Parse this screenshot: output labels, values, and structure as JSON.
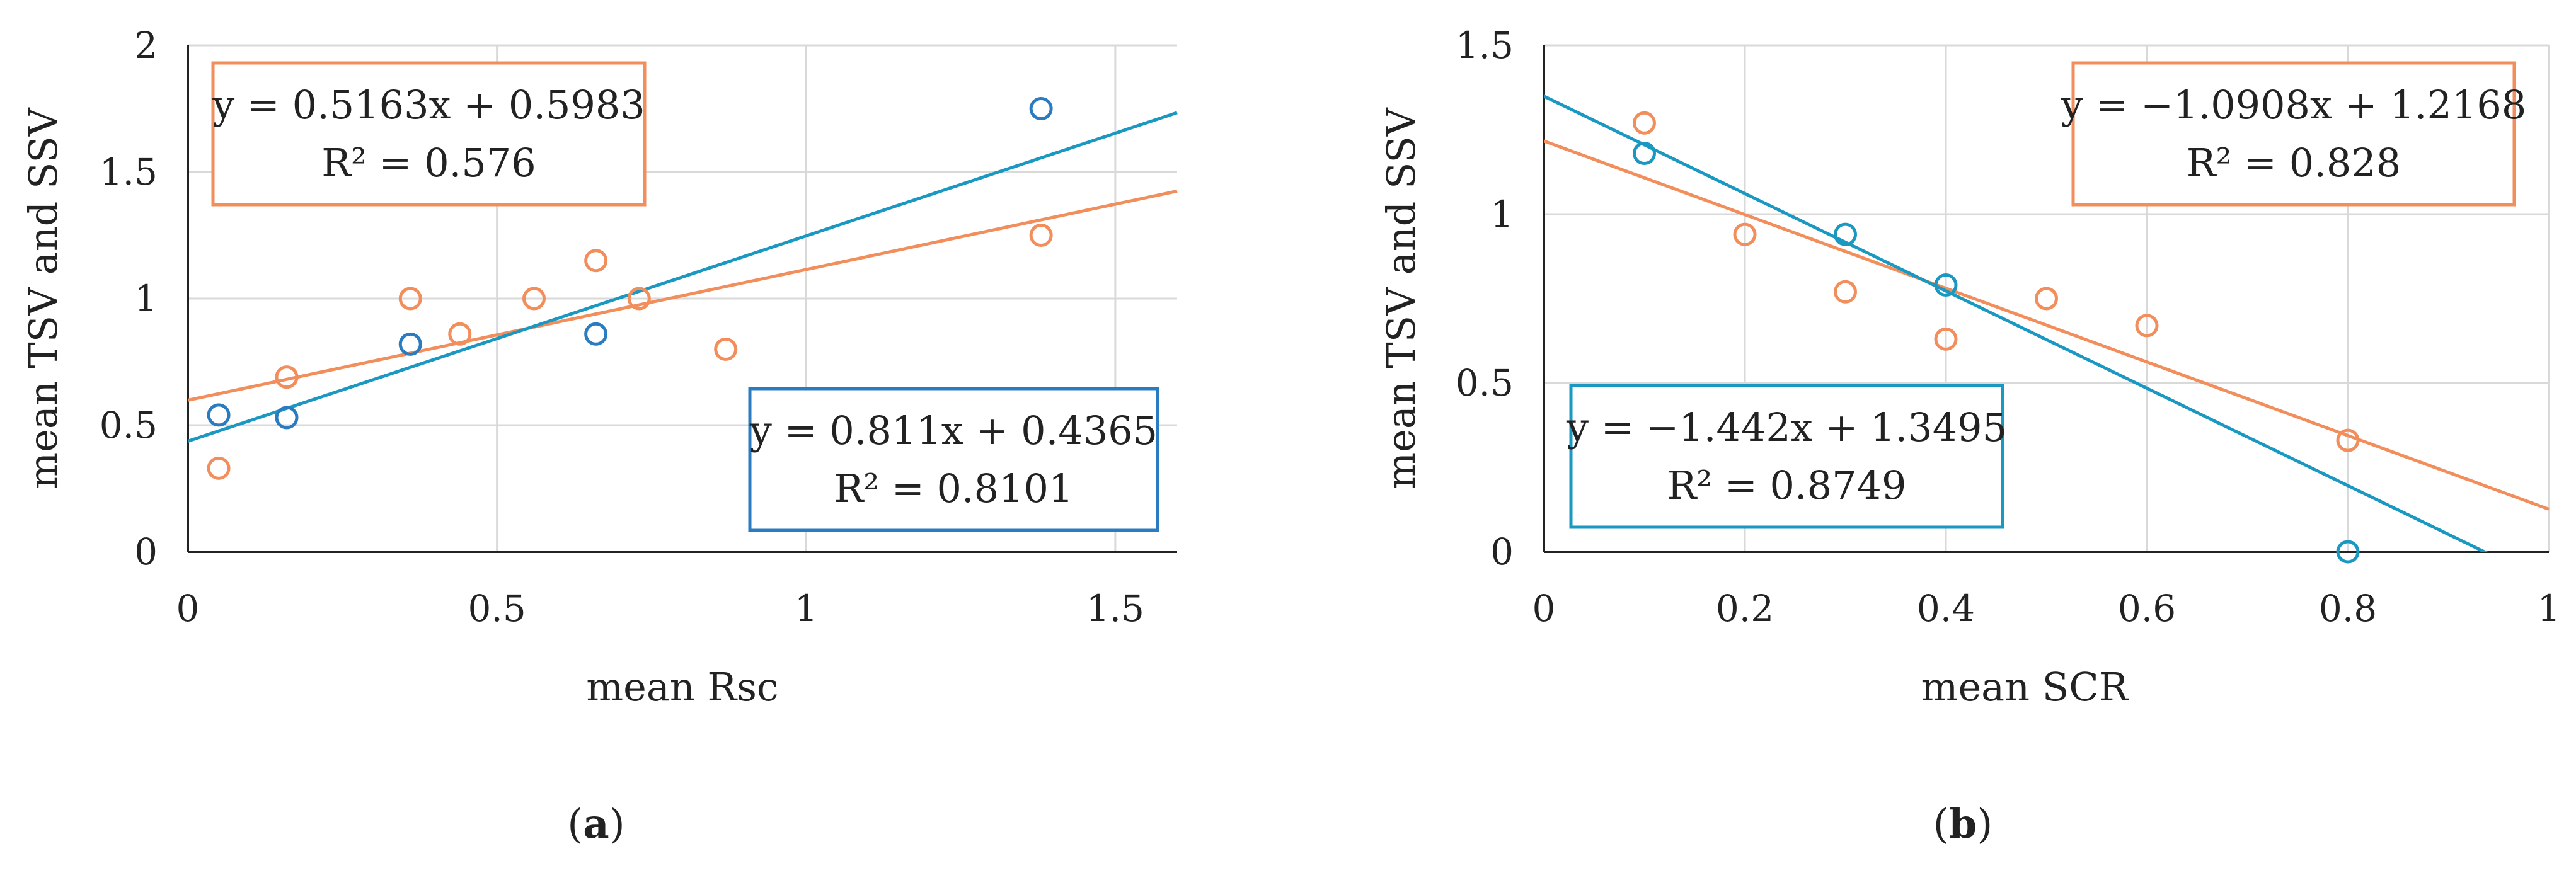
{
  "colors": {
    "orange": "#f28e5b",
    "blue": "#2a86c6",
    "cyan": "#1a98c2"
  },
  "panels": [
    {
      "id": "a",
      "label_open": "(",
      "label_letter": "a",
      "label_close": ")"
    },
    {
      "id": "b",
      "label_open": "(",
      "label_letter": "b",
      "label_close": ")"
    }
  ],
  "chart_data": [
    {
      "type": "scatter",
      "panel": "a",
      "xlabel": "mean Rsc",
      "ylabel": "mean TSV and SSV",
      "xlim": [
        0,
        1.6
      ],
      "ylim": [
        0,
        2
      ],
      "x_ticks": [
        0,
        0.5,
        1,
        1.5
      ],
      "x_tick_labels": [
        "0",
        "0.5",
        "1",
        "1.5"
      ],
      "y_ticks": [
        0,
        0.5,
        1,
        1.5,
        2
      ],
      "y_tick_labels": [
        "0",
        "0.5",
        "1",
        "1.5",
        "2"
      ],
      "series": [
        {
          "name": "orange",
          "color": "#f28e5b",
          "x": [
            0.05,
            0.16,
            0.36,
            0.44,
            0.56,
            0.66,
            0.73,
            0.87,
            1.38
          ],
          "y": [
            0.33,
            0.69,
            1.0,
            0.86,
            1.0,
            1.15,
            1.0,
            0.8,
            1.25
          ],
          "trendline": {
            "slope": 0.5163,
            "intercept": 0.5983
          },
          "equation": "y = 0.5163x + 0.5983",
          "r2": "R² = 0.576",
          "label_position": "top-left"
        },
        {
          "name": "blue",
          "color": "#2a86c6",
          "marker_color": "#2a7bc0",
          "x": [
            0.05,
            0.16,
            0.36,
            0.66,
            1.38
          ],
          "y": [
            0.54,
            0.53,
            0.82,
            0.86,
            1.75
          ],
          "trendline": {
            "slope": 0.811,
            "intercept": 0.4365
          },
          "line_color": "#1a98c2",
          "equation": "y = 0.811x + 0.4365",
          "r2": "R² = 0.8101",
          "label_position": "bottom-right"
        }
      ]
    },
    {
      "type": "scatter",
      "panel": "b",
      "xlabel": "mean SCR",
      "ylabel": "mean TSV and SSV",
      "xlim": [
        0,
        1
      ],
      "ylim": [
        0,
        1.5
      ],
      "x_ticks": [
        0,
        0.2,
        0.4,
        0.6,
        0.8,
        1
      ],
      "x_tick_labels": [
        "0",
        "0.2",
        "0.4",
        "0.6",
        "0.8",
        "1"
      ],
      "y_ticks": [
        0,
        0.5,
        1,
        1.5
      ],
      "y_tick_labels": [
        "0",
        "0.5",
        "1",
        "1.5"
      ],
      "series": [
        {
          "name": "orange",
          "color": "#f28e5b",
          "x": [
            0.1,
            0.2,
            0.3,
            0.4,
            0.5,
            0.6,
            0.8
          ],
          "y": [
            1.27,
            0.94,
            0.77,
            0.63,
            0.75,
            0.67,
            0.33
          ],
          "trendline": {
            "slope": -1.0908,
            "intercept": 1.2168
          },
          "equation": "y = −1.0908x + 1.2168",
          "r2": "R² = 0.828",
          "label_position": "top-right"
        },
        {
          "name": "blue",
          "color": "#1a98c2",
          "marker_color": "#1a98c2",
          "x": [
            0.1,
            0.3,
            0.4,
            0.8
          ],
          "y": [
            1.18,
            0.94,
            0.79,
            0.0
          ],
          "trendline": {
            "slope": -1.442,
            "intercept": 1.3495
          },
          "line_color": "#1a98c2",
          "equation": "y = −1.442x + 1.3495",
          "r2": "R² = 0.8749",
          "label_position": "bottom-left"
        }
      ]
    }
  ]
}
